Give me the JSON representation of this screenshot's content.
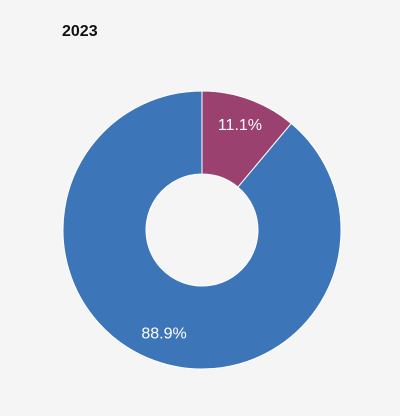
{
  "chart_data": {
    "type": "pie",
    "variant": "donut",
    "title": "2023",
    "slices": [
      {
        "label": "11.1%",
        "value": 11.1,
        "color": "#9b4170"
      },
      {
        "label": "88.9%",
        "value": 88.9,
        "color": "#3d76b8"
      }
    ],
    "legend": "none"
  }
}
